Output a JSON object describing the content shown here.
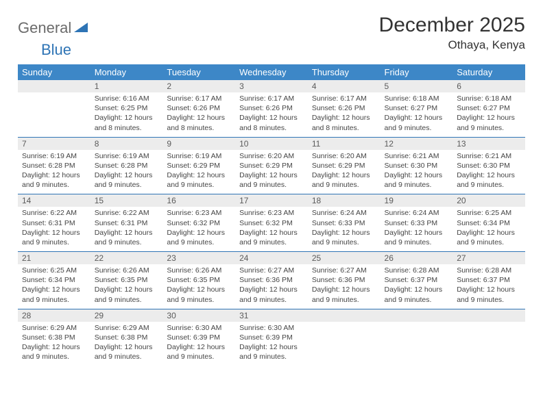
{
  "logo": {
    "text1": "General",
    "text2": "Blue"
  },
  "title": "December 2025",
  "location": "Othaya, Kenya",
  "colors": {
    "header_bg": "#3d87c7",
    "header_fg": "#ffffff",
    "daynum_bg": "#ececec",
    "row_border": "#2e74b5",
    "logo_gray": "#6b6b6b",
    "logo_blue": "#2e74b5",
    "text": "#444444"
  },
  "weekdays": [
    "Sunday",
    "Monday",
    "Tuesday",
    "Wednesday",
    "Thursday",
    "Friday",
    "Saturday"
  ],
  "weeks": [
    {
      "nums": [
        "",
        "1",
        "2",
        "3",
        "4",
        "5",
        "6"
      ],
      "cells": [
        "",
        "Sunrise: 6:16 AM\nSunset: 6:25 PM\nDaylight: 12 hours and 8 minutes.",
        "Sunrise: 6:17 AM\nSunset: 6:26 PM\nDaylight: 12 hours and 8 minutes.",
        "Sunrise: 6:17 AM\nSunset: 6:26 PM\nDaylight: 12 hours and 8 minutes.",
        "Sunrise: 6:17 AM\nSunset: 6:26 PM\nDaylight: 12 hours and 8 minutes.",
        "Sunrise: 6:18 AM\nSunset: 6:27 PM\nDaylight: 12 hours and 9 minutes.",
        "Sunrise: 6:18 AM\nSunset: 6:27 PM\nDaylight: 12 hours and 9 minutes."
      ]
    },
    {
      "nums": [
        "7",
        "8",
        "9",
        "10",
        "11",
        "12",
        "13"
      ],
      "cells": [
        "Sunrise: 6:19 AM\nSunset: 6:28 PM\nDaylight: 12 hours and 9 minutes.",
        "Sunrise: 6:19 AM\nSunset: 6:28 PM\nDaylight: 12 hours and 9 minutes.",
        "Sunrise: 6:19 AM\nSunset: 6:29 PM\nDaylight: 12 hours and 9 minutes.",
        "Sunrise: 6:20 AM\nSunset: 6:29 PM\nDaylight: 12 hours and 9 minutes.",
        "Sunrise: 6:20 AM\nSunset: 6:29 PM\nDaylight: 12 hours and 9 minutes.",
        "Sunrise: 6:21 AM\nSunset: 6:30 PM\nDaylight: 12 hours and 9 minutes.",
        "Sunrise: 6:21 AM\nSunset: 6:30 PM\nDaylight: 12 hours and 9 minutes."
      ]
    },
    {
      "nums": [
        "14",
        "15",
        "16",
        "17",
        "18",
        "19",
        "20"
      ],
      "cells": [
        "Sunrise: 6:22 AM\nSunset: 6:31 PM\nDaylight: 12 hours and 9 minutes.",
        "Sunrise: 6:22 AM\nSunset: 6:31 PM\nDaylight: 12 hours and 9 minutes.",
        "Sunrise: 6:23 AM\nSunset: 6:32 PM\nDaylight: 12 hours and 9 minutes.",
        "Sunrise: 6:23 AM\nSunset: 6:32 PM\nDaylight: 12 hours and 9 minutes.",
        "Sunrise: 6:24 AM\nSunset: 6:33 PM\nDaylight: 12 hours and 9 minutes.",
        "Sunrise: 6:24 AM\nSunset: 6:33 PM\nDaylight: 12 hours and 9 minutes.",
        "Sunrise: 6:25 AM\nSunset: 6:34 PM\nDaylight: 12 hours and 9 minutes."
      ]
    },
    {
      "nums": [
        "21",
        "22",
        "23",
        "24",
        "25",
        "26",
        "27"
      ],
      "cells": [
        "Sunrise: 6:25 AM\nSunset: 6:34 PM\nDaylight: 12 hours and 9 minutes.",
        "Sunrise: 6:26 AM\nSunset: 6:35 PM\nDaylight: 12 hours and 9 minutes.",
        "Sunrise: 6:26 AM\nSunset: 6:35 PM\nDaylight: 12 hours and 9 minutes.",
        "Sunrise: 6:27 AM\nSunset: 6:36 PM\nDaylight: 12 hours and 9 minutes.",
        "Sunrise: 6:27 AM\nSunset: 6:36 PM\nDaylight: 12 hours and 9 minutes.",
        "Sunrise: 6:28 AM\nSunset: 6:37 PM\nDaylight: 12 hours and 9 minutes.",
        "Sunrise: 6:28 AM\nSunset: 6:37 PM\nDaylight: 12 hours and 9 minutes."
      ]
    },
    {
      "nums": [
        "28",
        "29",
        "30",
        "31",
        "",
        "",
        ""
      ],
      "cells": [
        "Sunrise: 6:29 AM\nSunset: 6:38 PM\nDaylight: 12 hours and 9 minutes.",
        "Sunrise: 6:29 AM\nSunset: 6:38 PM\nDaylight: 12 hours and 9 minutes.",
        "Sunrise: 6:30 AM\nSunset: 6:39 PM\nDaylight: 12 hours and 9 minutes.",
        "Sunrise: 6:30 AM\nSunset: 6:39 PM\nDaylight: 12 hours and 9 minutes.",
        "",
        "",
        ""
      ]
    }
  ]
}
